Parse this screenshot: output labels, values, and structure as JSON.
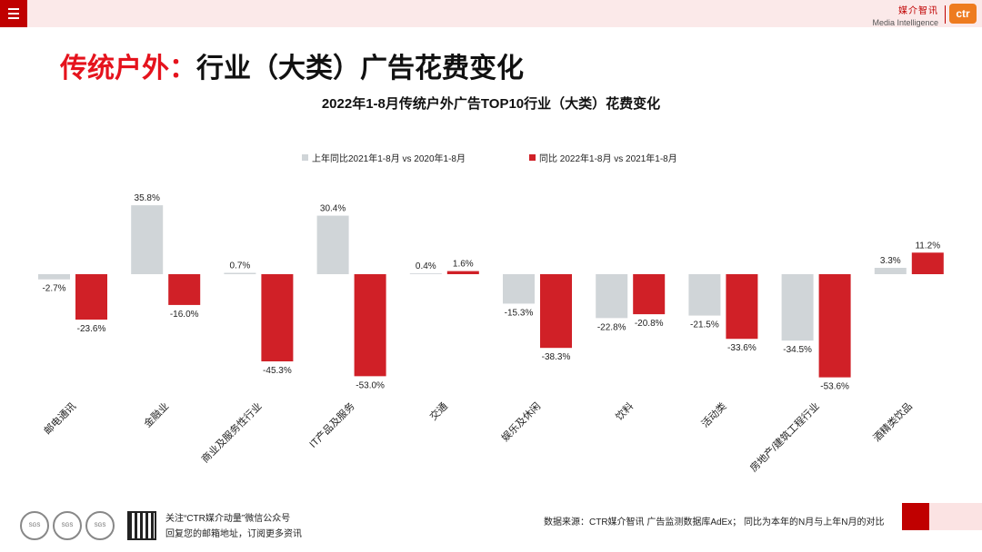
{
  "header": {
    "menu_icon": "hamburger-menu-icon",
    "brand_cn": "媒介智讯",
    "brand_en": "Media Intelligence",
    "logo_text": "ctr",
    "accent_color": "#c00000",
    "logo_color": "#ee7b1f"
  },
  "page": {
    "title_red": "传统户外：",
    "title_dark": "行业（大类）广告花费变化"
  },
  "chart_data": {
    "type": "bar",
    "title": "2022年1-8月传统户外广告TOP10行业（大类）花费变化",
    "categories": [
      "邮电通讯",
      "金融业",
      "商业及服务性行业",
      "IT产品及服务",
      "交通",
      "娱乐及休闲",
      "饮料",
      "活动类",
      "房地产/建筑工程行业",
      "酒精类饮品"
    ],
    "series": [
      {
        "name": "上年同比2021年1-8月  vs  2020年1-8月",
        "color": "#d0d5d8",
        "values": [
          -2.7,
          35.8,
          0.7,
          30.4,
          0.4,
          -15.3,
          -22.8,
          -21.5,
          -34.5,
          3.3
        ],
        "labels": [
          "-2.7%",
          "35.8%",
          "0.7%",
          "30.4%",
          "0.4%",
          "-15.3%",
          "-22.8%",
          "-21.5%",
          "-34.5%",
          "3.3%"
        ]
      },
      {
        "name": "同比 2022年1-8月  vs  2021年1-8月",
        "color": "#d02027",
        "values": [
          -23.6,
          -16.0,
          -45.3,
          -53.0,
          1.6,
          -38.3,
          -20.8,
          -33.6,
          -53.6,
          11.2
        ],
        "labels": [
          "-23.6%",
          "-16.0%",
          "-45.3%",
          "-53.0%",
          "1.6%",
          "-38.3%",
          "-20.8%",
          "-33.6%",
          "-53.6%",
          "11.2%"
        ]
      }
    ],
    "xlabel": "",
    "ylabel": "",
    "ylim": [
      -60,
      40
    ],
    "grid": false,
    "legend": "top-center"
  },
  "footer": {
    "certification_icons": [
      "SGS",
      "SGS",
      "SGS"
    ],
    "qr_icon": "qr-code-icon",
    "follow_text": "关注“CTR媒介动量”微信公众号",
    "reply_text": "回复您的邮箱地址，订阅更多资讯",
    "source_text": "数据来源：CTR媒介智讯 广告监测数据库AdEx；  同比为本年的N月与上年N月的对比"
  }
}
